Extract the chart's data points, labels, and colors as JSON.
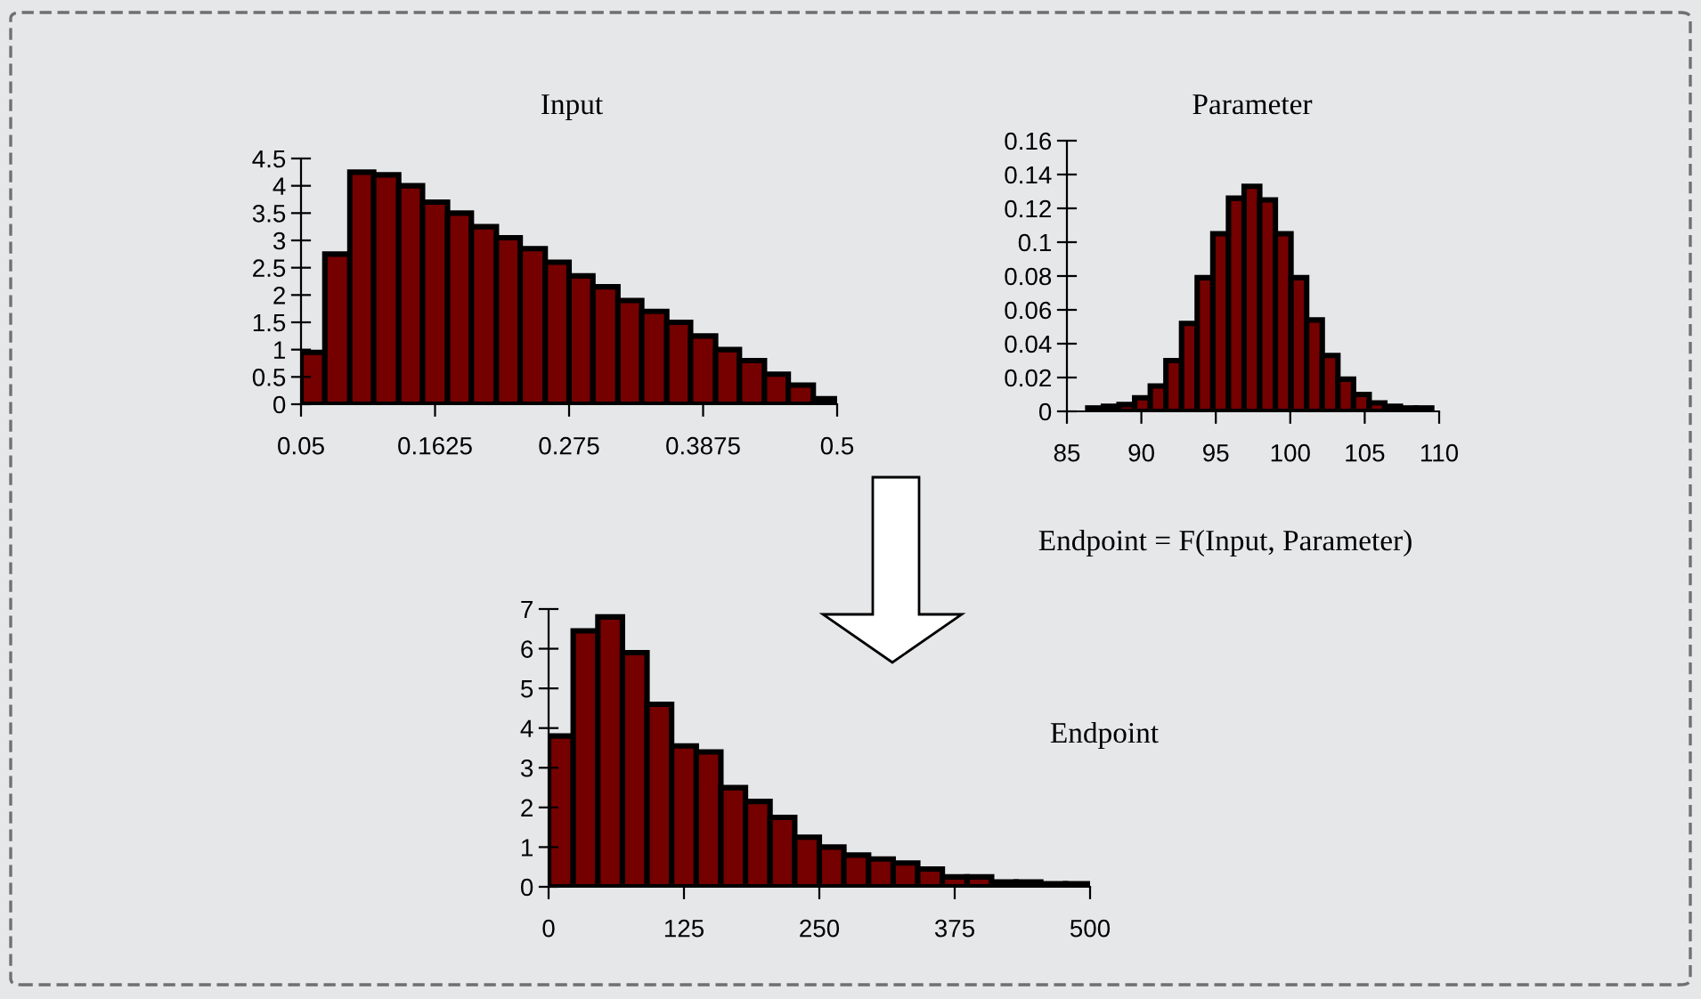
{
  "chart_data": [
    {
      "type": "histogram",
      "title": "Input",
      "color": "#750000",
      "bins": [
        0.05,
        0.07,
        0.091,
        0.111,
        0.132,
        0.152,
        0.173,
        0.193,
        0.214,
        0.234,
        0.255,
        0.275,
        0.295,
        0.316,
        0.336,
        0.357,
        0.377,
        0.398,
        0.418,
        0.439,
        0.459,
        0.48,
        0.5
      ],
      "values": [
        0.95,
        2.75,
        4.25,
        4.2,
        4.0,
        3.7,
        3.5,
        3.25,
        3.05,
        2.85,
        2.6,
        2.35,
        2.15,
        1.9,
        1.7,
        1.5,
        1.25,
        1.0,
        0.8,
        0.55,
        0.35,
        0.1
      ],
      "xlim": [
        0.05,
        0.5
      ],
      "xticks": [
        0.05,
        0.1625,
        0.275,
        0.3875,
        0.5
      ],
      "ylim": [
        0,
        4.5
      ],
      "yticks": [
        0,
        0.5,
        1,
        1.5,
        2,
        2.5,
        3,
        3.5,
        4,
        4.5
      ],
      "grid": false,
      "legend": false
    },
    {
      "type": "histogram",
      "title": "Parameter",
      "color": "#750000",
      "bins": [
        86.4,
        87.45,
        88.5,
        89.55,
        90.6,
        91.65,
        92.7,
        93.75,
        94.8,
        95.85,
        96.9,
        97.95,
        99,
        100.05,
        101.1,
        102.15,
        103.2,
        104.25,
        105.3,
        106.35,
        107.4,
        108.45,
        109.5
      ],
      "values": [
        0.002,
        0.003,
        0.004,
        0.008,
        0.015,
        0.03,
        0.052,
        0.079,
        0.105,
        0.126,
        0.133,
        0.125,
        0.105,
        0.079,
        0.054,
        0.033,
        0.019,
        0.01,
        0.005,
        0.003,
        0.002,
        0.002
      ],
      "xlim": [
        85,
        110
      ],
      "xticks": [
        85,
        90,
        95,
        100,
        105,
        110
      ],
      "ylim": [
        0,
        0.16
      ],
      "yticks": [
        0,
        0.02,
        0.04,
        0.06,
        0.08,
        0.1,
        0.12,
        0.14,
        0.16
      ],
      "grid": false,
      "legend": false
    },
    {
      "type": "histogram",
      "title": "Endpoint",
      "color": "#750000",
      "annotations": [
        "Endpoint = F(Input, Parameter)"
      ],
      "bins": [
        0,
        22.7,
        45.5,
        68.2,
        90.9,
        113.6,
        136.4,
        159.1,
        181.8,
        204.5,
        227.3,
        250,
        272.7,
        295.5,
        318.2,
        340.9,
        363.6,
        386.4,
        409.1,
        431.8,
        454.5,
        477.3,
        500
      ],
      "values": [
        3.8,
        6.45,
        6.8,
        5.9,
        4.6,
        3.55,
        3.4,
        2.5,
        2.15,
        1.75,
        1.25,
        1.0,
        0.8,
        0.7,
        0.6,
        0.45,
        0.25,
        0.25,
        0.12,
        0.12,
        0.08,
        0.08
      ],
      "xlim": [
        0,
        500
      ],
      "xticks": [
        0,
        125,
        250,
        375,
        500
      ],
      "ylim": [
        0,
        7
      ],
      "yticks": [
        0,
        1,
        2,
        3,
        4,
        5,
        6,
        7
      ],
      "grid": false,
      "legend": false
    }
  ]
}
